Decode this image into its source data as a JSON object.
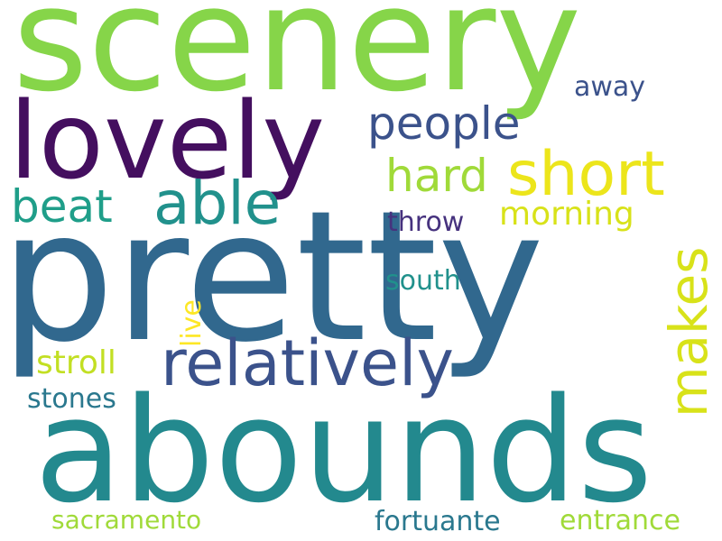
{
  "words": [
    {
      "id": "scenery",
      "text": "scenery",
      "color": "#86d549"
    },
    {
      "id": "lovely",
      "text": "lovely",
      "color": "#440f5f"
    },
    {
      "id": "pretty",
      "text": "pretty",
      "color": "#31688e"
    },
    {
      "id": "abounds",
      "text": "abounds",
      "color": "#23898e"
    },
    {
      "id": "relatively",
      "text": "relatively",
      "color": "#3b528b"
    },
    {
      "id": "short",
      "text": "short",
      "color": "#ece51b"
    },
    {
      "id": "able",
      "text": "able",
      "color": "#21918c"
    },
    {
      "id": "people",
      "text": "people",
      "color": "#3b528b"
    },
    {
      "id": "hard",
      "text": "hard",
      "color": "#a0da39"
    },
    {
      "id": "beat",
      "text": "beat",
      "color": "#1f9e89"
    },
    {
      "id": "makes",
      "text": "makes",
      "color": "#d8e219"
    },
    {
      "id": "morning",
      "text": "morning",
      "color": "#d8e219"
    },
    {
      "id": "throw",
      "text": "throw",
      "color": "#46327e"
    },
    {
      "id": "away",
      "text": "away",
      "color": "#3b528b"
    },
    {
      "id": "south",
      "text": "south",
      "color": "#21918c"
    },
    {
      "id": "live",
      "text": "live",
      "color": "#fde725"
    },
    {
      "id": "stroll",
      "text": "stroll",
      "color": "#c2df23"
    },
    {
      "id": "stones",
      "text": "stones",
      "color": "#2a788e"
    },
    {
      "id": "sacramento",
      "text": "sacramento",
      "color": "#a0da39"
    },
    {
      "id": "fortuante",
      "text": "fortuante",
      "color": "#2a788e"
    },
    {
      "id": "entrance",
      "text": "entrance",
      "color": "#a0da39"
    }
  ]
}
